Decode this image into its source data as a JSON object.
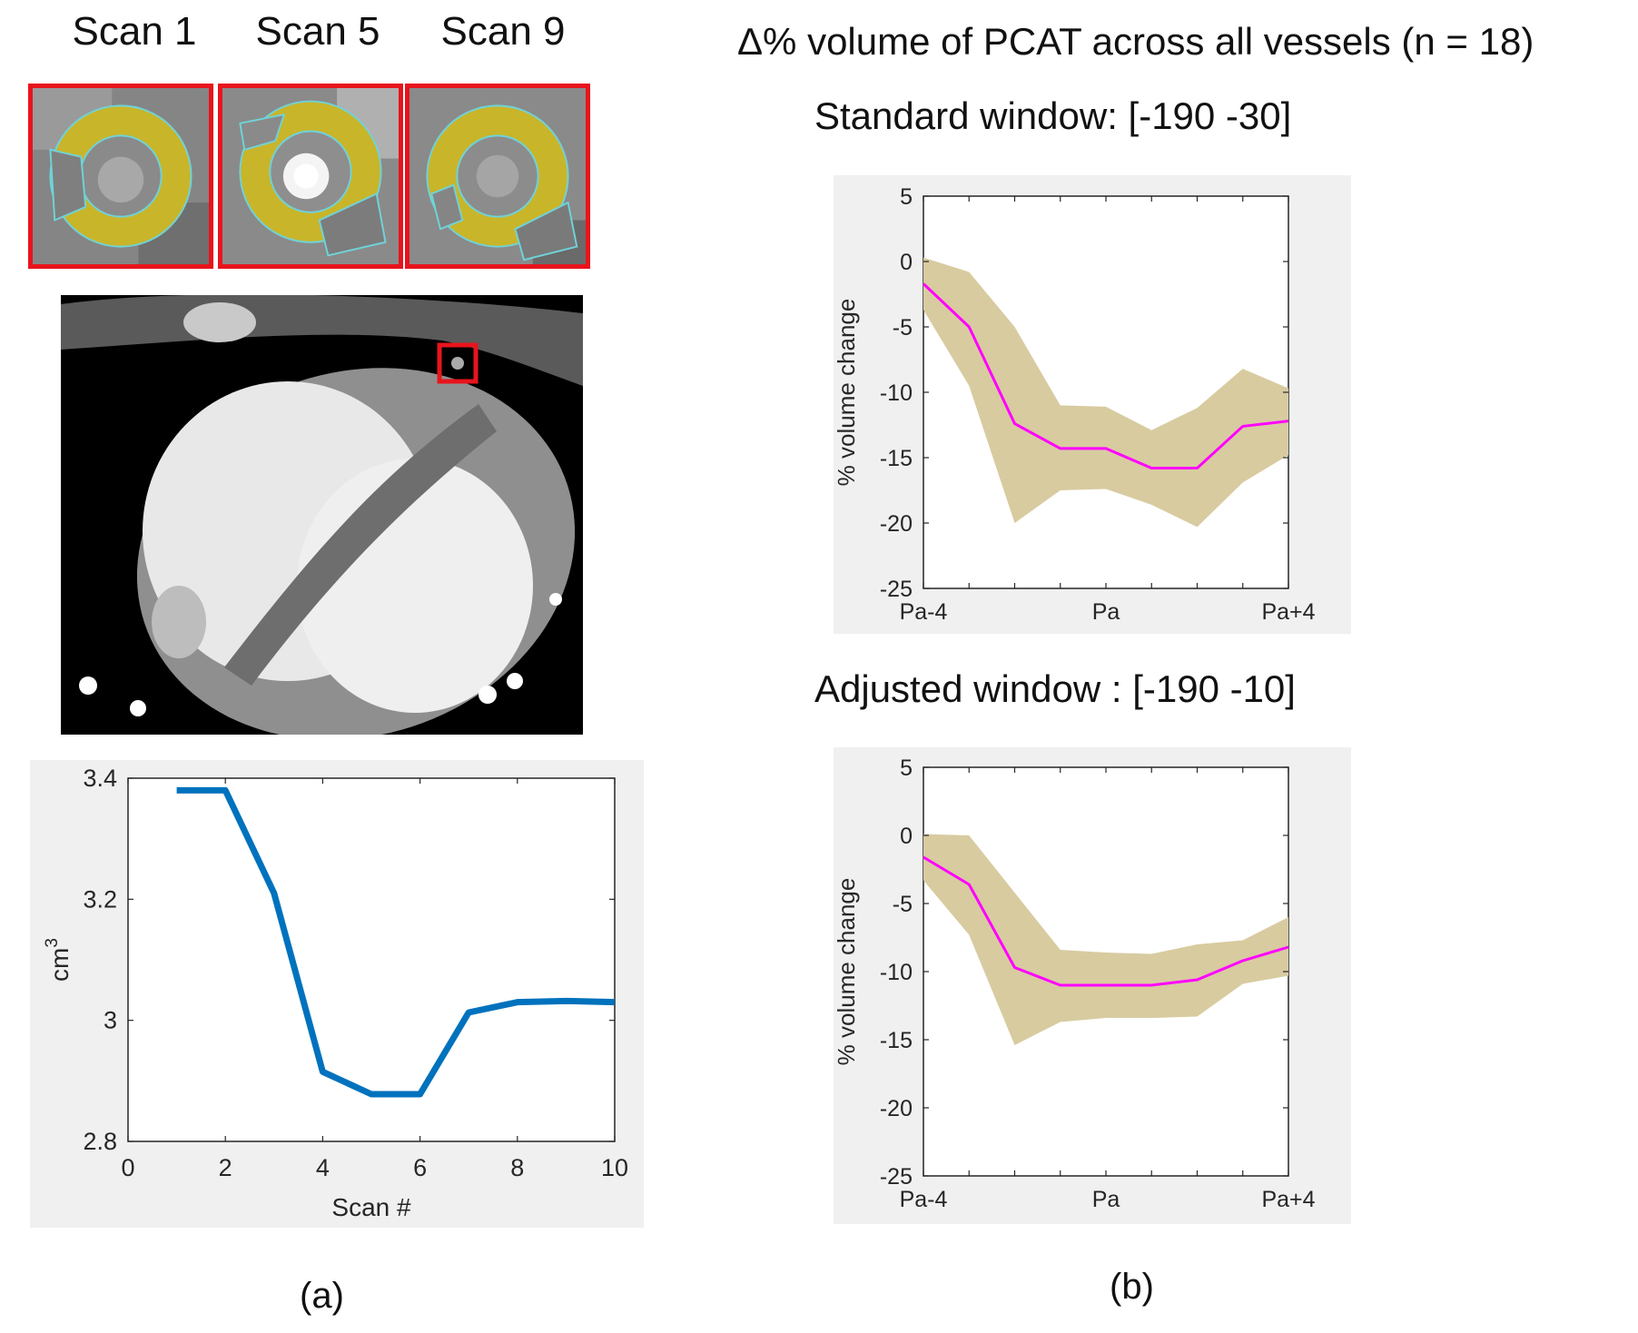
{
  "panel_a": {
    "scan_labels": [
      "Scan 1",
      "Scan 5",
      "Scan 9"
    ],
    "caption": "(a)"
  },
  "panel_b": {
    "title": "Δ% volume of PCAT across all vessels (n = 18)",
    "standard_title": "Standard window: [-190 -30]",
    "adjusted_title": "Adjusted window : [-190 -10]",
    "caption": "(b)"
  },
  "colors": {
    "highlight_box": "#e8141c",
    "segmentation_fill": "#c9b52a",
    "segmentation_edge": "#6fd3d9",
    "line_blue": "#0072bd",
    "mean_line": "#ff00ff",
    "band_fill": "#d8cba0",
    "axes_bg": "#f0f0f0"
  },
  "chart_data": [
    {
      "type": "line",
      "id": "scan_volume",
      "x": [
        1,
        2,
        3,
        4,
        5,
        6,
        7,
        8,
        9,
        10
      ],
      "values": [
        3.38,
        3.38,
        3.21,
        2.915,
        2.878,
        2.878,
        3.013,
        3.03,
        3.032,
        3.03
      ],
      "xlabel": "Scan #",
      "ylabel": "cm",
      "ylabel_sup": "3",
      "xlim": [
        0,
        10
      ],
      "ylim": [
        2.8,
        3.4
      ],
      "xticks": [
        0,
        2,
        4,
        6,
        8,
        10
      ],
      "yticks": [
        2.8,
        3,
        3.2,
        3.4
      ],
      "xtick_labels": [
        "0",
        "2",
        "4",
        "6",
        "8",
        "10"
      ],
      "ytick_labels": [
        "2.8",
        "3",
        "3.2",
        "3.4"
      ],
      "grid": false
    },
    {
      "type": "area",
      "id": "standard_window",
      "x": [
        -4,
        -3,
        -2,
        -1,
        0,
        1,
        2,
        3,
        4
      ],
      "mean": [
        -1.7,
        -5.0,
        -12.4,
        -14.3,
        -14.3,
        -15.8,
        -15.8,
        -12.6,
        -12.2
      ],
      "upper": [
        0.3,
        -0.8,
        -5.0,
        -11.0,
        -11.1,
        -12.9,
        -11.2,
        -8.2,
        -9.7
      ],
      "lower": [
        -3.7,
        -9.5,
        -20.0,
        -17.5,
        -17.4,
        -18.6,
        -20.3,
        -16.9,
        -14.8
      ],
      "ylabel": "% volume change",
      "xlim": [
        -4,
        4
      ],
      "ylim": [
        -25,
        5
      ],
      "yticks": [
        5,
        0,
        -5,
        -10,
        -15,
        -20,
        -25
      ],
      "ytick_labels": [
        "5",
        "0",
        "-5",
        "-10",
        "-15",
        "-20",
        "-25"
      ],
      "xticks": [
        -4,
        0,
        4
      ],
      "xtick_labels": [
        "Pa-4",
        "Pa",
        "Pa+4"
      ],
      "grid": false
    },
    {
      "type": "area",
      "id": "adjusted_window",
      "x": [
        -4,
        -3,
        -2,
        -1,
        0,
        1,
        2,
        3,
        4
      ],
      "mean": [
        -1.6,
        -3.6,
        -9.7,
        -11.0,
        -11.0,
        -11.0,
        -10.6,
        -9.2,
        -8.2
      ],
      "upper": [
        0.1,
        0.0,
        -4.2,
        -8.4,
        -8.6,
        -8.7,
        -8.0,
        -7.7,
        -6.0
      ],
      "lower": [
        -3.3,
        -7.3,
        -15.4,
        -13.7,
        -13.4,
        -13.4,
        -13.3,
        -10.9,
        -10.3
      ],
      "ylabel": "% volume change",
      "xlim": [
        -4,
        4
      ],
      "ylim": [
        -25,
        5
      ],
      "yticks": [
        5,
        0,
        -5,
        -10,
        -15,
        -20,
        -25
      ],
      "ytick_labels": [
        "5",
        "0",
        "-5",
        "-10",
        "-15",
        "-20",
        "-25"
      ],
      "xticks": [
        -4,
        0,
        4
      ],
      "xtick_labels": [
        "Pa-4",
        "Pa",
        "Pa+4"
      ],
      "grid": false
    }
  ]
}
